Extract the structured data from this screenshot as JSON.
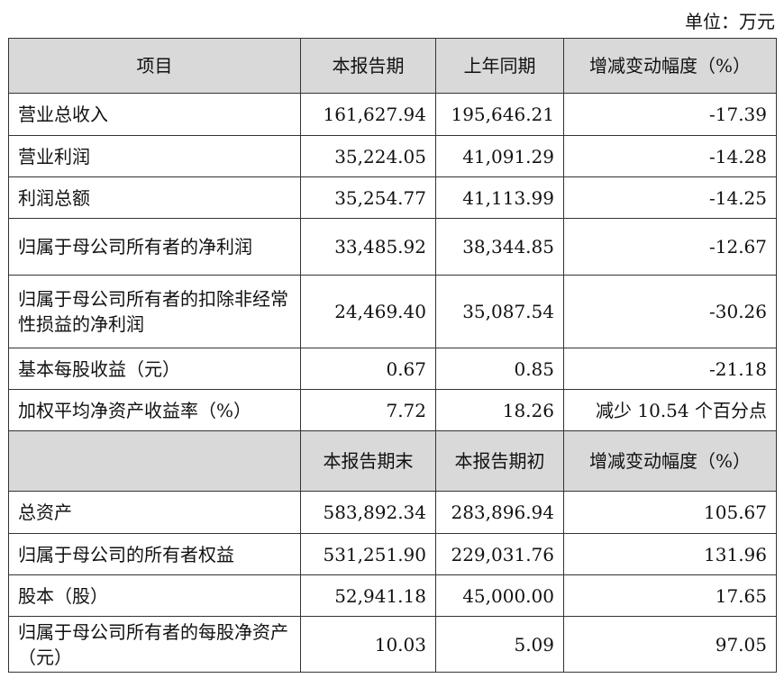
{
  "unit": "单位：万元",
  "table": {
    "header": [
      "项目",
      "本报告期",
      "上年同期",
      "增减变动幅度（%）"
    ],
    "rows": [
      [
        "营业总收入",
        "161,627.94",
        "195,646.21",
        "-17.39"
      ],
      [
        "营业利润",
        "35,224.05",
        "41,091.29",
        "-14.28"
      ],
      [
        "利润总额",
        "35,254.77",
        "41,113.99",
        "-14.25"
      ],
      [
        "归属于母公司所有者的净利润",
        "33,485.92",
        "38,344.85",
        "-12.67"
      ],
      [
        "归属于母公司所有者的扣除非经常性损益的净利润",
        "24,469.40",
        "35,087.54",
        "-30.26"
      ],
      [
        "基本每股收益（元）",
        "0.67",
        "0.85",
        "-21.18"
      ],
      [
        "加权平均净资产收益率（%）",
        "7.72",
        "18.26",
        "减少 10.54 个百分点"
      ]
    ],
    "header2": [
      "",
      "本报告期末",
      "本报告期初",
      "增减变动幅度（%）"
    ],
    "rows2": [
      [
        "总资产",
        "583,892.34",
        "283,896.94",
        "105.67"
      ],
      [
        "归属于母公司的所有者权益",
        "531,251.90",
        "229,031.76",
        "131.96"
      ],
      [
        "股本（股）",
        "52,941.18",
        "45,000.00",
        "17.65"
      ],
      [
        "归属于母公司所有者的每股净资产（元）",
        "10.03",
        "5.09",
        "97.05"
      ]
    ]
  }
}
